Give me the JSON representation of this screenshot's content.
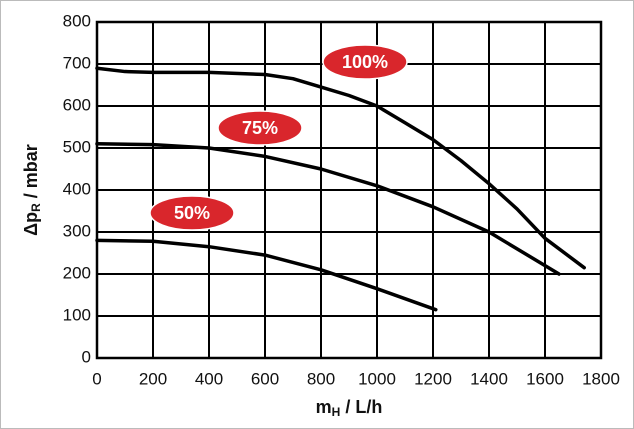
{
  "chart_data": {
    "type": "line",
    "x_label": [
      "m",
      "H",
      " / L/h"
    ],
    "y_label": [
      "Δp",
      "R",
      " / mbar"
    ],
    "xlim": [
      0,
      1800
    ],
    "xticks": [
      0,
      200,
      400,
      600,
      800,
      1000,
      1200,
      1400,
      1600,
      1800
    ],
    "ylim": [
      0,
      800
    ],
    "yticks": [
      0,
      100,
      200,
      300,
      400,
      500,
      600,
      700,
      800
    ],
    "grid": true,
    "label_color": "#d9262c",
    "series": [
      {
        "name": "100%",
        "color": "#000000",
        "x": [
          0,
          100,
          200,
          400,
          600,
          700,
          800,
          900,
          1000,
          1100,
          1200,
          1300,
          1400,
          1500,
          1600,
          1740
        ],
        "values": [
          690,
          682,
          680,
          680,
          675,
          665,
          645,
          625,
          600,
          560,
          520,
          470,
          415,
          355,
          285,
          215
        ]
      },
      {
        "name": "75%",
        "color": "#000000",
        "x": [
          0,
          200,
          400,
          600,
          800,
          1000,
          1200,
          1400,
          1650
        ],
        "values": [
          510,
          508,
          500,
          480,
          450,
          410,
          360,
          300,
          200
        ]
      },
      {
        "name": "50%",
        "color": "#000000",
        "x": [
          0,
          200,
          400,
          600,
          800,
          1000,
          1210
        ],
        "values": [
          280,
          278,
          265,
          245,
          210,
          165,
          115
        ]
      }
    ]
  }
}
